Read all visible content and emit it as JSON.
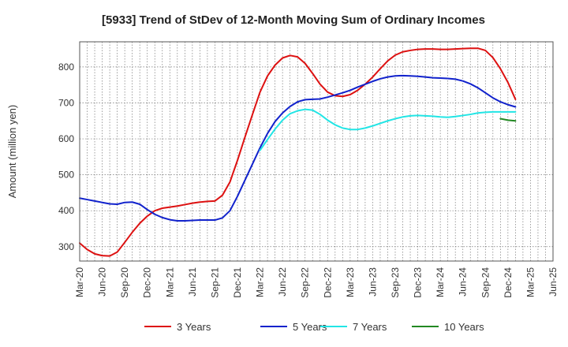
{
  "chart_data": {
    "type": "line",
    "title": "[5933]  Trend of StDev of 12-Month Moving Sum of Ordinary Incomes",
    "xlabel": "",
    "ylabel": "Amount (million yen)",
    "ylim": [
      260,
      870
    ],
    "yticks": [
      300,
      400,
      500,
      600,
      700,
      800
    ],
    "grid": true,
    "legend_position": "bottom",
    "x_tick_labels": [
      "Mar-20",
      "Jun-20",
      "Sep-20",
      "Dec-20",
      "Mar-21",
      "Jun-21",
      "Sep-21",
      "Dec-21",
      "Mar-22",
      "Jun-22",
      "Sep-22",
      "Dec-22",
      "Mar-23",
      "Jun-23",
      "Sep-23",
      "Dec-23",
      "Mar-24",
      "Jun-24",
      "Sep-24",
      "Dec-24",
      "Mar-25",
      "Jun-25"
    ],
    "x_start": "2020-03",
    "series": [
      {
        "name": "3 Years",
        "color": "#dd1111",
        "start_index": 0,
        "values": [
          310,
          292,
          280,
          275,
          274,
          285,
          312,
          340,
          365,
          385,
          400,
          407,
          410,
          413,
          417,
          421,
          424,
          426,
          427,
          443,
          480,
          540,
          605,
          668,
          730,
          775,
          805,
          825,
          832,
          828,
          810,
          782,
          752,
          730,
          720,
          718,
          723,
          735,
          752,
          772,
          795,
          817,
          833,
          842,
          846,
          849,
          850,
          850,
          849,
          849,
          850,
          851,
          852,
          852,
          846,
          826,
          795,
          757,
          710
        ]
      },
      {
        "name": "5 Years",
        "color": "#1122cc",
        "start_index": 0,
        "values": [
          435,
          431,
          427,
          423,
          419,
          418,
          423,
          424,
          418,
          403,
          390,
          381,
          375,
          372,
          372,
          373,
          374,
          374,
          374,
          380,
          400,
          440,
          485,
          530,
          575,
          615,
          648,
          672,
          690,
          703,
          709,
          710,
          711,
          716,
          722,
          728,
          735,
          744,
          752,
          760,
          767,
          772,
          775,
          776,
          775,
          774,
          772,
          770,
          769,
          768,
          766,
          761,
          753,
          742,
          728,
          714,
          703,
          695,
          689
        ]
      },
      {
        "name": "7 Years",
        "color": "#22e5e5",
        "start_index": 24,
        "values": [
          568,
          598,
          627,
          652,
          670,
          678,
          682,
          680,
          668,
          652,
          639,
          630,
          626,
          626,
          630,
          636,
          643,
          650,
          656,
          661,
          664,
          665,
          664,
          663,
          661,
          660,
          662,
          665,
          668,
          672,
          674,
          675,
          675,
          675,
          675
        ]
      },
      {
        "name": "10 Years",
        "color": "#228822",
        "start_index": 56,
        "values": [
          656,
          652,
          650
        ]
      }
    ]
  }
}
